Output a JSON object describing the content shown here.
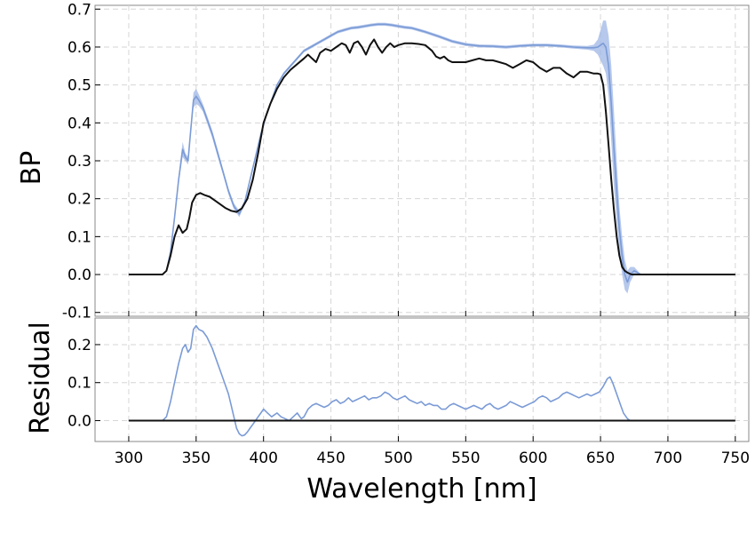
{
  "chart_data": [
    {
      "type": "line",
      "panel": "top",
      "ylabel": "BP",
      "ylim": [
        -0.11,
        0.71
      ],
      "xlim": [
        275,
        760
      ],
      "yticks": [
        "-0.1",
        "0.0",
        "0.1",
        "0.2",
        "0.3",
        "0.4",
        "0.5",
        "0.6",
        "0.7"
      ],
      "ytick_values": [
        -0.1,
        0.0,
        0.1,
        0.2,
        0.3,
        0.4,
        0.5,
        0.6,
        0.7
      ],
      "grid": true,
      "series": [
        {
          "color": "#7b9bd6",
          "band_color": "#9db5e5",
          "x": [
            300,
            325,
            328,
            331,
            334,
            337,
            340,
            342,
            344,
            346,
            348,
            350,
            352,
            355,
            358,
            362,
            366,
            370,
            374,
            378,
            382,
            386,
            390,
            394,
            398,
            402,
            406,
            410,
            415,
            420,
            425,
            430,
            435,
            440,
            445,
            450,
            455,
            460,
            465,
            470,
            475,
            480,
            485,
            490,
            495,
            500,
            505,
            510,
            515,
            520,
            530,
            540,
            550,
            560,
            570,
            580,
            590,
            600,
            610,
            620,
            630,
            640,
            645,
            648,
            650,
            652,
            654,
            656,
            658,
            660,
            662,
            664,
            666,
            668,
            670,
            672,
            675,
            680,
            690,
            700,
            750
          ],
          "y": [
            0.0,
            0.0,
            0.01,
            0.06,
            0.15,
            0.25,
            0.33,
            0.31,
            0.3,
            0.38,
            0.46,
            0.47,
            0.46,
            0.44,
            0.41,
            0.37,
            0.32,
            0.27,
            0.22,
            0.18,
            0.16,
            0.19,
            0.25,
            0.31,
            0.37,
            0.42,
            0.46,
            0.5,
            0.53,
            0.55,
            0.57,
            0.59,
            0.6,
            0.61,
            0.62,
            0.63,
            0.64,
            0.645,
            0.65,
            0.652,
            0.655,
            0.658,
            0.66,
            0.66,
            0.658,
            0.655,
            0.652,
            0.65,
            0.645,
            0.64,
            0.628,
            0.615,
            0.607,
            0.603,
            0.602,
            0.6,
            0.603,
            0.605,
            0.605,
            0.603,
            0.6,
            0.598,
            0.598,
            0.6,
            0.605,
            0.61,
            0.6,
            0.55,
            0.45,
            0.33,
            0.22,
            0.12,
            0.05,
            0.0,
            -0.02,
            0.0,
            0.01,
            0.0,
            0.0,
            0.0,
            0.0
          ],
          "band": [
            0.0,
            0.0,
            0.0,
            0.0,
            0.005,
            0.01,
            0.02,
            0.01,
            0.01,
            0.01,
            0.02,
            0.02,
            0.015,
            0.01,
            0.01,
            0.01,
            0.01,
            0.008,
            0.008,
            0.008,
            0.008,
            0.006,
            0.005,
            0.005,
            0.005,
            0.005,
            0.004,
            0.004,
            0.004,
            0.004,
            0.004,
            0.004,
            0.004,
            0.004,
            0.004,
            0.004,
            0.004,
            0.004,
            0.004,
            0.004,
            0.004,
            0.004,
            0.004,
            0.004,
            0.004,
            0.004,
            0.004,
            0.004,
            0.004,
            0.004,
            0.004,
            0.004,
            0.004,
            0.004,
            0.004,
            0.004,
            0.004,
            0.004,
            0.004,
            0.004,
            0.004,
            0.005,
            0.008,
            0.02,
            0.04,
            0.06,
            0.07,
            0.08,
            0.1,
            0.1,
            0.08,
            0.06,
            0.05,
            0.04,
            0.03,
            0.02,
            0.01,
            0.0,
            0.0,
            0.0,
            0.0
          ]
        },
        {
          "color": "#111111",
          "x": [
            300,
            325,
            328,
            331,
            334,
            337,
            340,
            343,
            345,
            347,
            350,
            353,
            356,
            360,
            364,
            368,
            372,
            376,
            380,
            384,
            388,
            392,
            396,
            400,
            405,
            410,
            415,
            420,
            425,
            430,
            433,
            436,
            439,
            442,
            446,
            450,
            454,
            458,
            461,
            464,
            467,
            470,
            473,
            476,
            479,
            482,
            485,
            488,
            491,
            494,
            497,
            500,
            505,
            510,
            515,
            520,
            525,
            528,
            531,
            534,
            537,
            540,
            545,
            550,
            555,
            560,
            565,
            570,
            575,
            580,
            585,
            590,
            595,
            600,
            605,
            610,
            615,
            620,
            625,
            630,
            635,
            640,
            645,
            648,
            650,
            652,
            654,
            656,
            658,
            660,
            662,
            664,
            666,
            668,
            670,
            673,
            676,
            680,
            685,
            690,
            700,
            750
          ],
          "y": [
            0.0,
            0.0,
            0.01,
            0.05,
            0.1,
            0.13,
            0.11,
            0.12,
            0.15,
            0.19,
            0.21,
            0.215,
            0.21,
            0.205,
            0.195,
            0.185,
            0.175,
            0.168,
            0.165,
            0.175,
            0.2,
            0.25,
            0.32,
            0.4,
            0.45,
            0.49,
            0.52,
            0.54,
            0.555,
            0.57,
            0.58,
            0.57,
            0.56,
            0.585,
            0.595,
            0.59,
            0.6,
            0.61,
            0.605,
            0.585,
            0.61,
            0.615,
            0.6,
            0.58,
            0.605,
            0.62,
            0.6,
            0.585,
            0.6,
            0.61,
            0.6,
            0.605,
            0.61,
            0.61,
            0.608,
            0.605,
            0.59,
            0.575,
            0.57,
            0.575,
            0.565,
            0.56,
            0.56,
            0.56,
            0.565,
            0.57,
            0.565,
            0.565,
            0.56,
            0.555,
            0.545,
            0.555,
            0.565,
            0.56,
            0.545,
            0.535,
            0.545,
            0.545,
            0.53,
            0.52,
            0.535,
            0.535,
            0.53,
            0.53,
            0.528,
            0.5,
            0.43,
            0.34,
            0.25,
            0.17,
            0.1,
            0.05,
            0.02,
            0.01,
            0.005,
            0.0,
            0.0,
            0.0,
            0.0,
            0.0,
            0.0,
            0.0
          ]
        }
      ]
    },
    {
      "type": "line",
      "panel": "bottom",
      "ylabel": "Residual",
      "xlabel": "Wavelength [nm]",
      "ylim": [
        -0.055,
        0.27
      ],
      "xlim": [
        275,
        760
      ],
      "yticks": [
        "0.0",
        "0.1",
        "0.2"
      ],
      "ytick_values": [
        0.0,
        0.1,
        0.2
      ],
      "xticks": [
        "300",
        "350",
        "400",
        "450",
        "500",
        "550",
        "600",
        "650",
        "700",
        "750"
      ],
      "xtick_values": [
        300,
        350,
        400,
        450,
        500,
        550,
        600,
        650,
        700,
        750
      ],
      "grid": true,
      "series": [
        {
          "color": "#7b9bd6",
          "x": [
            300,
            325,
            328,
            331,
            334,
            337,
            340,
            342,
            344,
            346,
            348,
            350,
            352,
            355,
            358,
            362,
            366,
            370,
            374,
            376,
            378,
            380,
            382,
            384,
            386,
            388,
            390,
            392,
            394,
            396,
            398,
            400,
            403,
            406,
            410,
            413,
            416,
            419,
            422,
            425,
            428,
            430,
            433,
            436,
            439,
            442,
            445,
            448,
            451,
            454,
            457,
            460,
            463,
            466,
            469,
            472,
            475,
            478,
            481,
            484,
            487,
            490,
            493,
            496,
            499,
            502,
            505,
            508,
            511,
            514,
            517,
            520,
            523,
            526,
            529,
            532,
            535,
            538,
            541,
            544,
            547,
            550,
            553,
            556,
            559,
            562,
            565,
            568,
            571,
            574,
            577,
            580,
            583,
            586,
            589,
            592,
            595,
            598,
            601,
            604,
            607,
            610,
            613,
            616,
            619,
            622,
            625,
            628,
            631,
            634,
            637,
            640,
            643,
            646,
            649,
            652,
            655,
            657,
            659,
            661,
            663,
            665,
            667,
            670,
            672,
            675,
            700,
            750
          ],
          "y": [
            0.0,
            0.0,
            0.01,
            0.05,
            0.1,
            0.15,
            0.19,
            0.2,
            0.18,
            0.19,
            0.24,
            0.25,
            0.24,
            0.235,
            0.22,
            0.19,
            0.15,
            0.11,
            0.07,
            0.04,
            0.01,
            -0.02,
            -0.035,
            -0.04,
            -0.038,
            -0.03,
            -0.02,
            -0.01,
            0.0,
            0.01,
            0.02,
            0.03,
            0.02,
            0.01,
            0.02,
            0.01,
            0.005,
            0.0,
            0.01,
            0.02,
            0.005,
            0.01,
            0.03,
            0.04,
            0.045,
            0.04,
            0.035,
            0.04,
            0.05,
            0.055,
            0.045,
            0.05,
            0.06,
            0.05,
            0.055,
            0.06,
            0.065,
            0.055,
            0.06,
            0.06,
            0.065,
            0.075,
            0.07,
            0.06,
            0.055,
            0.06,
            0.065,
            0.055,
            0.05,
            0.045,
            0.05,
            0.04,
            0.045,
            0.04,
            0.04,
            0.03,
            0.03,
            0.04,
            0.045,
            0.04,
            0.035,
            0.03,
            0.035,
            0.04,
            0.035,
            0.03,
            0.04,
            0.045,
            0.035,
            0.03,
            0.035,
            0.04,
            0.05,
            0.045,
            0.04,
            0.035,
            0.04,
            0.045,
            0.05,
            0.06,
            0.065,
            0.06,
            0.05,
            0.055,
            0.06,
            0.07,
            0.075,
            0.07,
            0.065,
            0.06,
            0.065,
            0.07,
            0.065,
            0.07,
            0.075,
            0.09,
            0.11,
            0.115,
            0.1,
            0.08,
            0.06,
            0.04,
            0.02,
            0.005,
            0.0,
            0.0,
            0.0,
            0.0
          ]
        },
        {
          "color": "#111111",
          "x": [
            300,
            750
          ],
          "y": [
            0.0,
            0.0
          ]
        }
      ]
    }
  ]
}
